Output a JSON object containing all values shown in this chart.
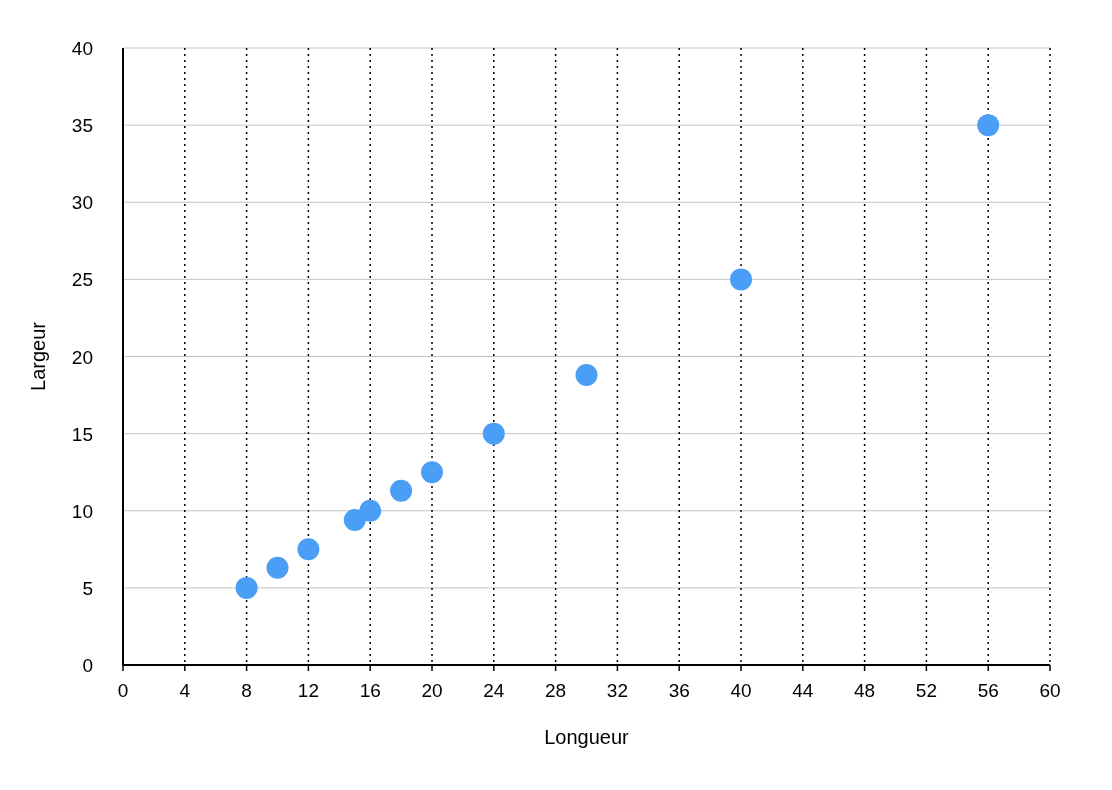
{
  "chart_data": {
    "type": "scatter",
    "xlabel": "Longueur",
    "ylabel": "Largeur",
    "x": [
      8,
      10,
      12,
      15,
      16,
      18,
      20,
      24,
      30,
      40,
      56
    ],
    "values": [
      5,
      6.3,
      7.5,
      9.4,
      10,
      11.3,
      12.5,
      15,
      18.8,
      25,
      35
    ],
    "color": "#4a9ef5",
    "marker": "circle",
    "xlim": [
      0,
      60
    ],
    "xticks": [
      0,
      4,
      8,
      12,
      16,
      20,
      24,
      28,
      32,
      36,
      40,
      44,
      48,
      52,
      56,
      60
    ],
    "ylim": [
      0,
      40
    ],
    "yticks": [
      0,
      5,
      10,
      15,
      20,
      25,
      30,
      35,
      40
    ],
    "grid": true
  }
}
